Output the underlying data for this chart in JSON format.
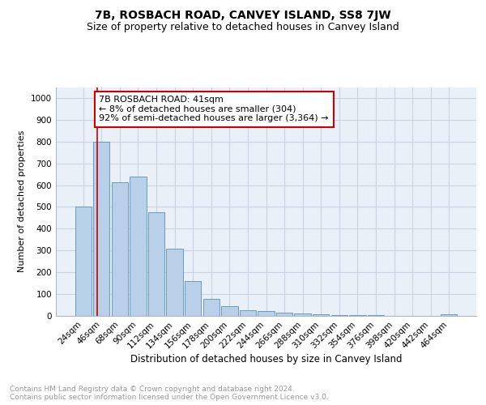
{
  "title": "7B, ROSBACH ROAD, CANVEY ISLAND, SS8 7JW",
  "subtitle": "Size of property relative to detached houses in Canvey Island",
  "xlabel": "Distribution of detached houses by size in Canvey Island",
  "ylabel": "Number of detached properties",
  "categories": [
    "24sqm",
    "46sqm",
    "68sqm",
    "90sqm",
    "112sqm",
    "134sqm",
    "156sqm",
    "178sqm",
    "200sqm",
    "222sqm",
    "244sqm",
    "266sqm",
    "288sqm",
    "310sqm",
    "332sqm",
    "354sqm",
    "376sqm",
    "398sqm",
    "420sqm",
    "442sqm",
    "464sqm"
  ],
  "values": [
    500,
    800,
    615,
    638,
    475,
    310,
    158,
    78,
    46,
    25,
    22,
    15,
    10,
    8,
    3,
    2,
    2,
    1,
    0,
    0,
    8
  ],
  "bar_color": "#b8d0e8",
  "bar_edge_color": "#5a90c0",
  "grid_color": "#c8d4e4",
  "background_color": "#eaf0f8",
  "annotation_line1": "7B ROSBACH ROAD: 41sqm",
  "annotation_line2": "← 8% of detached houses are smaller (304)",
  "annotation_line3": "92% of semi-detached houses are larger (3,364) →",
  "annotation_box_color": "#cc0000",
  "ylim": [
    0,
    1050
  ],
  "yticks": [
    0,
    100,
    200,
    300,
    400,
    500,
    600,
    700,
    800,
    900,
    1000
  ],
  "footnote": "Contains HM Land Registry data © Crown copyright and database right 2024.\nContains public sector information licensed under the Open Government Licence v3.0.",
  "title_fontsize": 10,
  "subtitle_fontsize": 9,
  "xlabel_fontsize": 8.5,
  "ylabel_fontsize": 8,
  "tick_fontsize": 7.5,
  "annotation_fontsize": 8,
  "footnote_fontsize": 6.5
}
